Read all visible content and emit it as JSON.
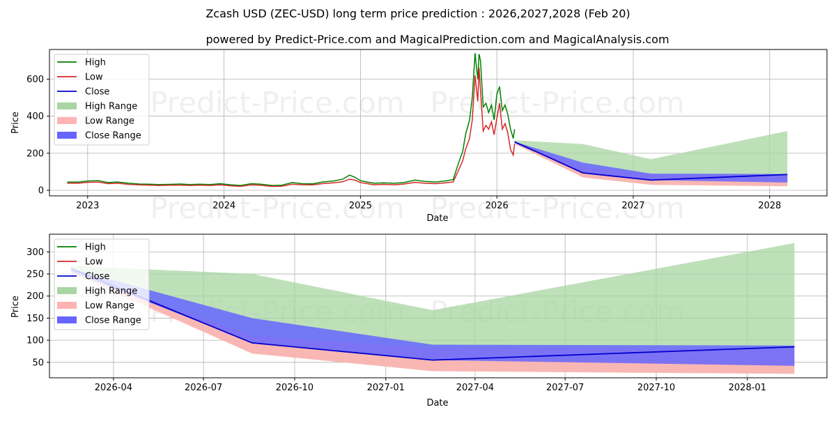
{
  "title": "Zcash USD (ZEC-USD) long term price prediction : 2026,2027,2028 (Feb 20)",
  "subtitle": "powered by Predict-Price.com and MagicalPrediction.com and MagicalAnalysis.com",
  "watermark": "Predict-Price.com",
  "colors": {
    "high": "#008000",
    "low": "#d62728",
    "close": "#0000cc",
    "high_range": "#a8d5a2",
    "low_range": "#ffb3b3",
    "close_range": "#6666ff"
  },
  "legend": [
    "High",
    "Low",
    "Close",
    "High Range",
    "Low Range",
    "Close Range"
  ],
  "chart_data": [
    {
      "id": "top",
      "type": "line",
      "xlabel": "Date",
      "ylabel": "Price",
      "xlim": [
        2022.72,
        2028.42
      ],
      "ylim": [
        -30,
        760
      ],
      "x_ticks": [
        2023,
        2024,
        2025,
        2026,
        2027,
        2028
      ],
      "x_tick_labels": [
        "2023",
        "2024",
        "2025",
        "2026",
        "2027",
        "2028"
      ],
      "y_ticks": [
        0,
        200,
        400,
        600
      ],
      "y_tick_labels": [
        "0",
        "200",
        "400",
        "600"
      ],
      "history": {
        "x": [
          2022.85,
          2022.93,
          2023.0,
          2023.08,
          2023.15,
          2023.22,
          2023.3,
          2023.38,
          2023.45,
          2023.52,
          2023.6,
          2023.68,
          2023.75,
          2023.82,
          2023.9,
          2023.97,
          2024.05,
          2024.12,
          2024.2,
          2024.27,
          2024.35,
          2024.42,
          2024.5,
          2024.57,
          2024.65,
          2024.72,
          2024.8,
          2024.87,
          2024.92,
          2024.96,
          2025.0,
          2025.05,
          2025.1,
          2025.17,
          2025.25,
          2025.32,
          2025.4,
          2025.47,
          2025.55,
          2025.62,
          2025.68,
          2025.72,
          2025.75,
          2025.77,
          2025.8,
          2025.82,
          2025.84,
          2025.86,
          2025.87,
          2025.88,
          2025.9,
          2025.92,
          2025.94,
          2025.96,
          2025.98,
          2026.0,
          2026.02,
          2026.04,
          2026.06,
          2026.08,
          2026.1,
          2026.12,
          2026.13
        ],
        "high": [
          45,
          44,
          50,
          52,
          42,
          45,
          38,
          34,
          33,
          31,
          32,
          34,
          31,
          33,
          31,
          36,
          30,
          26,
          36,
          33,
          26,
          27,
          42,
          36,
          35,
          45,
          50,
          60,
          82,
          70,
          52,
          45,
          38,
          40,
          38,
          42,
          55,
          48,
          45,
          50,
          58,
          150,
          210,
          300,
          380,
          500,
          740,
          600,
          735,
          700,
          450,
          470,
          420,
          460,
          380,
          520,
          560,
          430,
          460,
          410,
          330,
          280,
          330
        ],
        "low": [
          38,
          38,
          43,
          44,
          36,
          38,
          32,
          29,
          28,
          26,
          27,
          28,
          26,
          28,
          26,
          30,
          24,
          21,
          29,
          27,
          21,
          22,
          33,
          30,
          29,
          36,
          40,
          46,
          60,
          55,
          42,
          36,
          30,
          32,
          30,
          34,
          43,
          38,
          36,
          40,
          45,
          110,
          160,
          220,
          280,
          380,
          620,
          480,
          660,
          540,
          320,
          350,
          330,
          370,
          300,
          390,
          470,
          330,
          360,
          310,
          220,
          190,
          250
        ],
        "close": [
          42,
          41,
          47,
          48,
          39,
          41,
          35,
          31,
          30,
          28,
          29,
          31,
          28,
          30,
          28,
          33,
          27,
          23,
          32,
          30,
          23,
          24,
          38,
          33,
          32,
          40,
          45,
          52,
          72,
          62,
          47,
          40,
          34,
          36,
          34,
          38,
          49,
          43,
          40,
          45,
          52,
          130,
          190,
          260,
          340,
          440,
          680,
          550,
          700,
          600,
          380,
          420,
          380,
          420,
          340,
          460,
          520,
          380,
          410,
          360,
          280,
          220,
          265
        ]
      },
      "forecast": {
        "x": [
          2026.13,
          2026.63,
          2027.13,
          2028.13
        ],
        "high_upper": [
          270,
          250,
          168,
          320
        ],
        "high_lower": [
          255,
          70,
          30,
          22
        ],
        "low_upper": [
          255,
          130,
          85,
          85
        ],
        "low_lower": [
          250,
          70,
          30,
          22
        ],
        "close_upper": [
          262,
          150,
          90,
          88
        ],
        "close_lower": [
          255,
          95,
          55,
          42
        ],
        "close": [
          262,
          94,
          55,
          85
        ]
      }
    },
    {
      "id": "bottom",
      "type": "line",
      "xlabel": "Date",
      "ylabel": "Price",
      "xlim": [
        2026.07,
        2028.22
      ],
      "ylim": [
        15,
        340
      ],
      "x_ticks": [
        2026.247,
        2026.496,
        2026.748,
        2027.0,
        2027.247,
        2027.496,
        2027.748,
        2028.0
      ],
      "x_tick_labels": [
        "2026-04",
        "2026-07",
        "2026-10",
        "2027-01",
        "2027-04",
        "2027-07",
        "2027-10",
        "2028-01"
      ],
      "y_ticks": [
        50,
        100,
        150,
        200,
        250,
        300
      ],
      "y_tick_labels": [
        "50",
        "100",
        "150",
        "200",
        "250",
        "300"
      ],
      "forecast": {
        "x": [
          2026.13,
          2026.63,
          2027.13,
          2028.13
        ],
        "high_upper": [
          268,
          250,
          168,
          320
        ],
        "high_lower": [
          258,
          70,
          30,
          24
        ],
        "low_upper": [
          255,
          110,
          82,
          80
        ],
        "low_lower": [
          252,
          70,
          30,
          24
        ],
        "close_upper": [
          262,
          150,
          90,
          88
        ],
        "close_lower": [
          255,
          95,
          55,
          42
        ],
        "close": [
          262,
          94,
          55,
          85
        ]
      }
    }
  ]
}
